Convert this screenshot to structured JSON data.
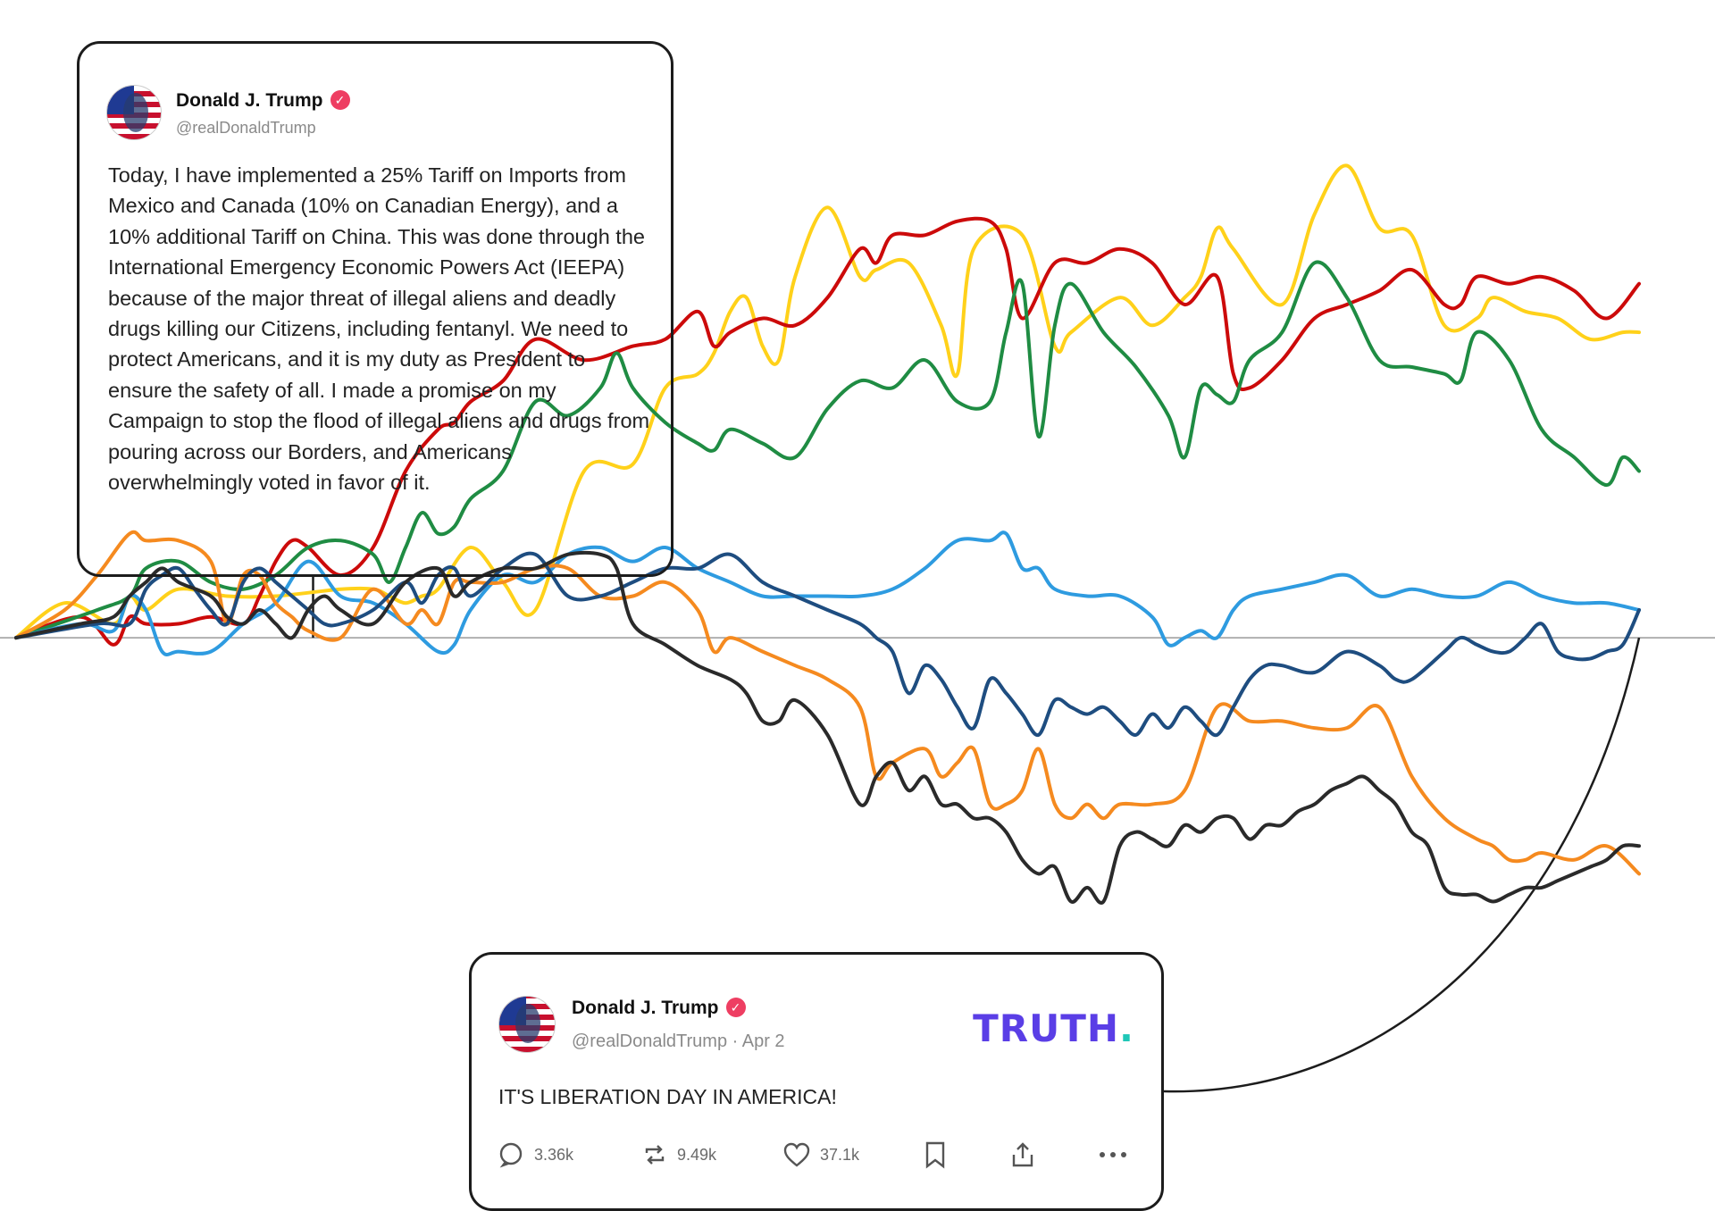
{
  "chart_data": {
    "type": "line",
    "xlim": [
      0,
      100
    ],
    "ylim": [
      -40,
      70
    ],
    "grid": false,
    "series": [
      {
        "color": "#ffd11a",
        "x": [
          0,
          3,
          6,
          7,
          8,
          10,
          13,
          16,
          20,
          22,
          23,
          24,
          25,
          26,
          28,
          30,
          32,
          35,
          38,
          40,
          42,
          43,
          44,
          45,
          46,
          47,
          48,
          50,
          52,
          53,
          55,
          57,
          58,
          59,
          62,
          64,
          65,
          68,
          70,
          72,
          73,
          74,
          75,
          78,
          80,
          82,
          84,
          86,
          88,
          90,
          91,
          93,
          95,
          97,
          99,
          100
        ],
        "y": [
          0,
          5,
          2,
          6,
          4,
          7,
          6,
          6,
          7,
          7,
          6,
          5,
          6,
          7,
          13,
          8,
          4,
          24,
          25,
          36,
          38,
          41,
          47,
          49,
          42,
          40,
          52,
          62,
          52,
          53,
          54,
          45,
          38,
          56,
          58,
          42,
          44,
          49,
          45,
          49,
          52,
          59,
          56,
          48,
          61,
          68,
          59,
          58,
          45,
          46,
          49,
          47,
          46,
          43,
          44,
          44
        ]
      },
      {
        "color": "#cc0a0a",
        "x": [
          0,
          4,
          6,
          7,
          8,
          10,
          12,
          14,
          15,
          16,
          17,
          18,
          20,
          22,
          24,
          26,
          27,
          28,
          30,
          32,
          35,
          38,
          40,
          42,
          43,
          44,
          46,
          48,
          50,
          52,
          53,
          54,
          56,
          58,
          60,
          61,
          62,
          64,
          66,
          68,
          70,
          72,
          74,
          75,
          76,
          78,
          80,
          82,
          84,
          86,
          88,
          89,
          90,
          92,
          94,
          96,
          98,
          100
        ],
        "y": [
          0,
          3,
          -1,
          3,
          2,
          2,
          3,
          2,
          6,
          11,
          14,
          13,
          9,
          13,
          24,
          30,
          31,
          34,
          37,
          43,
          40,
          42,
          43,
          47,
          42,
          44,
          46,
          45,
          49,
          56,
          54,
          58,
          58,
          60,
          60,
          56,
          46,
          54,
          54,
          56,
          54,
          48,
          52,
          38,
          36,
          40,
          46,
          48,
          50,
          53,
          48,
          48,
          52,
          51,
          52,
          50,
          46,
          51
        ]
      },
      {
        "color": "#1f8c43",
        "x": [
          0,
          5,
          7,
          8,
          10,
          12,
          14,
          16,
          18,
          20,
          22,
          23,
          24,
          25,
          26,
          27,
          28,
          30,
          32,
          34,
          36,
          37,
          38,
          40,
          42,
          43,
          44,
          46,
          48,
          50,
          52,
          54,
          56,
          58,
          60,
          61,
          62,
          63,
          64,
          65,
          67,
          69,
          71,
          72,
          73,
          74,
          75,
          76,
          78,
          80,
          82,
          84,
          86,
          88,
          89,
          90,
          92,
          94,
          96,
          98,
          99,
          100
        ],
        "y": [
          0,
          4,
          6,
          10,
          11,
          8,
          7,
          9,
          13,
          14,
          12,
          8,
          13,
          18,
          15,
          16,
          20,
          24,
          34,
          32,
          36,
          41,
          36,
          31,
          28,
          27,
          30,
          28,
          26,
          33,
          37,
          36,
          40,
          34,
          34,
          44,
          51,
          29,
          45,
          51,
          44,
          39,
          32,
          26,
          36,
          35,
          34,
          40,
          44,
          54,
          49,
          40,
          39,
          38,
          37,
          44,
          40,
          30,
          26,
          22,
          26,
          24
        ]
      },
      {
        "color": "#2e9be0",
        "x": [
          0,
          4,
          6,
          7,
          8,
          9,
          10,
          12,
          14,
          16,
          18,
          20,
          22,
          24,
          26,
          27,
          28,
          30,
          32,
          34,
          36,
          38,
          40,
          42,
          44,
          46,
          48,
          50,
          52,
          54,
          56,
          58,
          60,
          61,
          62,
          63,
          64,
          66,
          68,
          70,
          71,
          72,
          73,
          74,
          75,
          76,
          78,
          80,
          82,
          84,
          86,
          88,
          90,
          92,
          94,
          96,
          98,
          100
        ],
        "y": [
          0,
          2,
          1,
          6,
          4,
          -2,
          -2,
          -2,
          2,
          5,
          11,
          6,
          5,
          2,
          -2,
          -1,
          4,
          9,
          8,
          12,
          13,
          11,
          13,
          10,
          8,
          6,
          6,
          6,
          6,
          7,
          10,
          14,
          14,
          15,
          10,
          10,
          7,
          6,
          6,
          3,
          -1,
          0,
          1,
          0,
          4,
          6,
          7,
          8,
          9,
          6,
          7,
          6,
          6,
          8,
          6,
          5,
          5,
          4
        ]
      },
      {
        "color": "#f58a1f",
        "x": [
          0,
          3,
          5,
          7,
          8,
          10,
          12,
          13,
          14,
          15,
          16,
          17,
          18,
          20,
          22,
          24,
          25,
          26,
          27,
          28,
          30,
          32,
          34,
          36,
          38,
          40,
          42,
          43,
          44,
          46,
          48,
          50,
          52,
          53,
          54,
          56,
          57,
          58,
          59,
          60,
          61,
          62,
          63,
          64,
          65,
          66,
          67,
          68,
          70,
          72,
          74,
          76,
          78,
          80,
          82,
          84,
          86,
          88,
          90,
          91,
          92,
          93,
          94,
          96,
          98,
          100
        ],
        "y": [
          0,
          4,
          9,
          15,
          14,
          14,
          11,
          2,
          9,
          9,
          5,
          3,
          1,
          0,
          7,
          2,
          4,
          2,
          8,
          8,
          8,
          10,
          10,
          6,
          6,
          8,
          4,
          -2,
          0,
          -2,
          -4,
          -6,
          -10,
          -20,
          -18,
          -16,
          -20,
          -18,
          -16,
          -24,
          -24,
          -22,
          -16,
          -24,
          -26,
          -24,
          -26,
          -24,
          -24,
          -22,
          -10,
          -12,
          -12,
          -13,
          -13,
          -10,
          -20,
          -26,
          -29,
          -30,
          -32,
          -32,
          -31,
          -32,
          -30,
          -34
        ]
      },
      {
        "color": "#1e4d80",
        "x": [
          0,
          5,
          7,
          8,
          9,
          10,
          11,
          12,
          13,
          14,
          15,
          16,
          17,
          18,
          19,
          20,
          22,
          24,
          25,
          26,
          27,
          28,
          30,
          32,
          34,
          36,
          38,
          40,
          42,
          44,
          46,
          48,
          50,
          52,
          53,
          54,
          55,
          56,
          57,
          58,
          59,
          60,
          61,
          62,
          63,
          64,
          65,
          66,
          67,
          68,
          69,
          70,
          71,
          72,
          73,
          74,
          75,
          76,
          77,
          78,
          80,
          82,
          84,
          85,
          86,
          88,
          89,
          90,
          91,
          92,
          93,
          94,
          95,
          96,
          97,
          98,
          99,
          100
        ],
        "y": [
          0,
          2,
          2,
          7,
          9,
          10,
          7,
          4,
          2,
          8,
          10,
          8,
          6,
          4,
          2,
          2,
          4,
          8,
          5,
          9,
          10,
          6,
          10,
          12,
          6,
          6,
          8,
          10,
          10,
          12,
          8,
          6,
          4,
          2,
          0,
          -2,
          -8,
          -4,
          -6,
          -10,
          -13,
          -6,
          -8,
          -11,
          -14,
          -9,
          -10,
          -11,
          -10,
          -12,
          -14,
          -11,
          -13,
          -10,
          -12,
          -14,
          -10,
          -6,
          -4,
          -4,
          -5,
          -2,
          -4,
          -6,
          -6,
          -2,
          0,
          -1,
          -2,
          -2,
          0,
          2,
          -2,
          -3,
          -3,
          -2,
          -1,
          4
        ]
      },
      {
        "color": "#2a2a2a",
        "x": [
          0,
          4,
          6,
          7,
          8,
          9,
          10,
          12,
          13,
          14,
          15,
          16,
          17,
          18,
          19,
          20,
          22,
          24,
          26,
          27,
          28,
          30,
          32,
          34,
          36,
          37,
          38,
          40,
          42,
          44,
          45,
          46,
          47,
          48,
          50,
          52,
          53,
          54,
          55,
          56,
          57,
          58,
          59,
          60,
          61,
          62,
          63,
          64,
          65,
          66,
          67,
          68,
          69,
          70,
          71,
          72,
          73,
          74,
          75,
          76,
          77,
          78,
          79,
          80,
          81,
          82,
          83,
          84,
          85,
          86,
          87,
          88,
          89,
          90,
          91,
          92,
          93,
          94,
          95,
          96,
          97,
          98,
          99,
          100
        ],
        "y": [
          0,
          2,
          3,
          6,
          8,
          10,
          8,
          6,
          3,
          2,
          4,
          2,
          0,
          4,
          6,
          4,
          2,
          8,
          10,
          6,
          8,
          10,
          10,
          12,
          12,
          10,
          2,
          -1,
          -4,
          -6,
          -8,
          -12,
          -12,
          -9,
          -14,
          -24,
          -20,
          -18,
          -22,
          -20,
          -24,
          -24,
          -26,
          -26,
          -28,
          -32,
          -34,
          -33,
          -38,
          -36,
          -38,
          -30,
          -28,
          -29,
          -30,
          -27,
          -28,
          -26,
          -26,
          -29,
          -27,
          -27,
          -25,
          -24,
          -22,
          -21,
          -20,
          -22,
          -24,
          -28,
          -30,
          -36,
          -37,
          -37,
          -38,
          -37,
          -36,
          -36,
          -35,
          -34,
          -33,
          -32,
          -30,
          -30
        ]
      }
    ],
    "baseline": 0
  },
  "tweet_top": {
    "author": "Donald J. Trump",
    "handle": "@realDonaldTrump",
    "text": "Today, I have implemented a 25% Tariff on Imports from Mexico and Canada (10% on Canadian Energy), and a 10% additional Tariff on China. This was done through the International Emergency Economic Powers Act (IEEPA) because of the major threat of illegal aliens and deadly drugs killing our Citizens, including fentanyl. We need to protect Americans, and it is my duty as President to ensure the safety of all. I made a promise on my Campaign to stop the flood of illegal aliens and drugs from pouring across our Borders, and Americans overwhelmingly voted in favor of it.",
    "annotation_x": 18.3
  },
  "tweet_bottom": {
    "author": "Donald J. Trump",
    "handle": "@realDonaldTrump · Apr 2",
    "text": "IT'S LIBERATION DAY IN AMERICA!",
    "brand": "TRUTH",
    "replies": "3.36k",
    "reposts": "9.49k",
    "likes": "37.1k",
    "icon_more": "more-icon",
    "icon_share": "share-icon",
    "icon_bookmark": "bookmark-icon",
    "annotation_x": 100
  }
}
